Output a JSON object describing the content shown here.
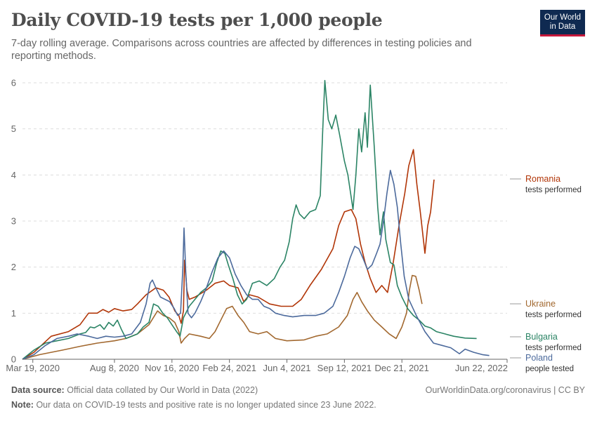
{
  "header": {
    "title": "Daily COVID-19 tests per 1,000 people",
    "subtitle": "7-day rolling average. Comparisons across countries are affected by differences in testing policies and reporting methods."
  },
  "logo": {
    "line1": "Our World",
    "line2": "in Data"
  },
  "footer": {
    "source_label": "Data source:",
    "source_text": "Official data collated by Our World in Data (2022)",
    "url": "OurWorldinData.org/coronavirus | CC BY",
    "note_label": "Note:",
    "note_text": "Our data on COVID-19 tests and positive rate is no longer updated since 23 June 2022."
  },
  "colors": {
    "grid": "#dddddd",
    "axis": "#666666"
  },
  "chart_data": {
    "type": "line",
    "title": "Daily COVID-19 tests per 1,000 people",
    "x_unit": "days since 2020-03-01",
    "xlim": [
      0,
      843
    ],
    "ylim": [
      0,
      6
    ],
    "yticks": [
      0,
      1,
      2,
      3,
      4,
      5,
      6
    ],
    "xticks": [
      {
        "x": 18,
        "label": "Mar 19, 2020"
      },
      {
        "x": 160,
        "label": "Aug 8, 2020"
      },
      {
        "x": 260,
        "label": "Nov 16, 2020"
      },
      {
        "x": 360,
        "label": "Feb 24, 2021"
      },
      {
        "x": 460,
        "label": "Jun 4, 2021"
      },
      {
        "x": 560,
        "label": "Sep 12, 2021"
      },
      {
        "x": 660,
        "label": "Dec 21, 2021"
      },
      {
        "x": 843,
        "label": "Jun 22, 2022"
      }
    ],
    "grid": "horizontal dashed",
    "series": [
      {
        "name": "Romania",
        "sub": "tests performed",
        "color": "#b13507",
        "points": [
          [
            0,
            0
          ],
          [
            20,
            0.15
          ],
          [
            50,
            0.5
          ],
          [
            80,
            0.6
          ],
          [
            100,
            0.75
          ],
          [
            115,
            1.0
          ],
          [
            130,
            1.0
          ],
          [
            140,
            1.08
          ],
          [
            150,
            1.02
          ],
          [
            160,
            1.1
          ],
          [
            175,
            1.05
          ],
          [
            190,
            1.08
          ],
          [
            200,
            1.2
          ],
          [
            215,
            1.4
          ],
          [
            232,
            1.55
          ],
          [
            245,
            1.5
          ],
          [
            255,
            1.35
          ],
          [
            265,
            1.05
          ],
          [
            272,
            0.95
          ],
          [
            276,
            0.78
          ],
          [
            280,
            1.05
          ],
          [
            282,
            2.15
          ],
          [
            286,
            1.5
          ],
          [
            290,
            1.3
          ],
          [
            300,
            1.35
          ],
          [
            320,
            1.5
          ],
          [
            335,
            1.65
          ],
          [
            350,
            1.7
          ],
          [
            360,
            1.6
          ],
          [
            375,
            1.55
          ],
          [
            385,
            1.25
          ],
          [
            395,
            1.4
          ],
          [
            410,
            1.35
          ],
          [
            430,
            1.2
          ],
          [
            450,
            1.15
          ],
          [
            470,
            1.15
          ],
          [
            485,
            1.3
          ],
          [
            500,
            1.6
          ],
          [
            520,
            1.95
          ],
          [
            540,
            2.4
          ],
          [
            550,
            2.9
          ],
          [
            560,
            3.2
          ],
          [
            572,
            3.25
          ],
          [
            580,
            3.05
          ],
          [
            588,
            2.5
          ],
          [
            596,
            2.1
          ],
          [
            605,
            1.75
          ],
          [
            615,
            1.45
          ],
          [
            625,
            1.6
          ],
          [
            635,
            1.45
          ],
          [
            645,
            2.1
          ],
          [
            655,
            2.9
          ],
          [
            665,
            3.6
          ],
          [
            672,
            4.2
          ],
          [
            680,
            4.55
          ],
          [
            686,
            3.8
          ],
          [
            692,
            3.2
          ],
          [
            700,
            2.3
          ],
          [
            705,
            2.9
          ],
          [
            710,
            3.2
          ],
          [
            716,
            3.9
          ]
        ]
      },
      {
        "name": "Ukraine",
        "sub": "tests performed",
        "color": "#a2682f",
        "points": [
          [
            0,
            0
          ],
          [
            30,
            0.1
          ],
          [
            70,
            0.2
          ],
          [
            100,
            0.28
          ],
          [
            130,
            0.35
          ],
          [
            160,
            0.4
          ],
          [
            180,
            0.45
          ],
          [
            200,
            0.55
          ],
          [
            220,
            0.75
          ],
          [
            235,
            1.05
          ],
          [
            245,
            0.95
          ],
          [
            255,
            0.9
          ],
          [
            265,
            0.8
          ],
          [
            272,
            0.6
          ],
          [
            276,
            0.35
          ],
          [
            282,
            0.45
          ],
          [
            290,
            0.55
          ],
          [
            310,
            0.5
          ],
          [
            325,
            0.45
          ],
          [
            335,
            0.6
          ],
          [
            345,
            0.85
          ],
          [
            355,
            1.1
          ],
          [
            365,
            1.15
          ],
          [
            375,
            0.95
          ],
          [
            385,
            0.8
          ],
          [
            395,
            0.6
          ],
          [
            410,
            0.55
          ],
          [
            425,
            0.6
          ],
          [
            440,
            0.45
          ],
          [
            460,
            0.4
          ],
          [
            490,
            0.42
          ],
          [
            510,
            0.5
          ],
          [
            530,
            0.55
          ],
          [
            550,
            0.7
          ],
          [
            565,
            0.95
          ],
          [
            575,
            1.3
          ],
          [
            582,
            1.45
          ],
          [
            590,
            1.25
          ],
          [
            600,
            1.05
          ],
          [
            612,
            0.85
          ],
          [
            625,
            0.7
          ],
          [
            638,
            0.55
          ],
          [
            650,
            0.45
          ],
          [
            660,
            0.7
          ],
          [
            668,
            1.0
          ],
          [
            673,
            1.5
          ],
          [
            678,
            1.82
          ],
          [
            684,
            1.8
          ],
          [
            690,
            1.5
          ],
          [
            695,
            1.2
          ]
        ]
      },
      {
        "name": "Bulgaria",
        "sub": "tests performed",
        "color": "#2b8465",
        "points": [
          [
            0,
            0
          ],
          [
            20,
            0.2
          ],
          [
            40,
            0.35
          ],
          [
            60,
            0.4
          ],
          [
            80,
            0.45
          ],
          [
            100,
            0.55
          ],
          [
            110,
            0.58
          ],
          [
            118,
            0.7
          ],
          [
            125,
            0.68
          ],
          [
            135,
            0.75
          ],
          [
            142,
            0.65
          ],
          [
            150,
            0.8
          ],
          [
            158,
            0.72
          ],
          [
            165,
            0.85
          ],
          [
            172,
            0.65
          ],
          [
            180,
            0.45
          ],
          [
            190,
            0.5
          ],
          [
            200,
            0.55
          ],
          [
            210,
            0.7
          ],
          [
            220,
            0.8
          ],
          [
            228,
            1.2
          ],
          [
            236,
            1.15
          ],
          [
            244,
            1.0
          ],
          [
            252,
            0.9
          ],
          [
            260,
            0.75
          ],
          [
            268,
            0.6
          ],
          [
            274,
            0.5
          ],
          [
            280,
            0.9
          ],
          [
            290,
            1.15
          ],
          [
            300,
            1.3
          ],
          [
            310,
            1.45
          ],
          [
            320,
            1.55
          ],
          [
            330,
            1.7
          ],
          [
            338,
            2.1
          ],
          [
            345,
            2.35
          ],
          [
            352,
            2.3
          ],
          [
            358,
            2.05
          ],
          [
            366,
            1.75
          ],
          [
            374,
            1.4
          ],
          [
            382,
            1.2
          ],
          [
            390,
            1.3
          ],
          [
            400,
            1.65
          ],
          [
            412,
            1.7
          ],
          [
            425,
            1.6
          ],
          [
            438,
            1.75
          ],
          [
            448,
            2.0
          ],
          [
            456,
            2.15
          ],
          [
            464,
            2.55
          ],
          [
            470,
            3.05
          ],
          [
            476,
            3.35
          ],
          [
            482,
            3.15
          ],
          [
            490,
            3.05
          ],
          [
            500,
            3.2
          ],
          [
            510,
            3.25
          ],
          [
            518,
            3.55
          ],
          [
            522,
            4.9
          ],
          [
            526,
            6.05
          ],
          [
            532,
            5.2
          ],
          [
            538,
            5.0
          ],
          [
            545,
            5.3
          ],
          [
            552,
            4.85
          ],
          [
            560,
            4.3
          ],
          [
            566,
            4.0
          ],
          [
            572,
            3.5
          ],
          [
            575,
            3.25
          ],
          [
            580,
            4.0
          ],
          [
            585,
            5.0
          ],
          [
            590,
            4.5
          ],
          [
            596,
            5.35
          ],
          [
            600,
            4.6
          ],
          [
            605,
            5.95
          ],
          [
            612,
            4.6
          ],
          [
            618,
            3.3
          ],
          [
            622,
            2.7
          ],
          [
            628,
            3.2
          ],
          [
            632,
            2.6
          ],
          [
            640,
            2.1
          ],
          [
            646,
            2.05
          ],
          [
            652,
            1.6
          ],
          [
            660,
            1.35
          ],
          [
            670,
            1.1
          ],
          [
            680,
            0.95
          ],
          [
            690,
            0.85
          ],
          [
            700,
            0.72
          ],
          [
            710,
            0.68
          ],
          [
            720,
            0.6
          ],
          [
            735,
            0.55
          ],
          [
            750,
            0.5
          ],
          [
            770,
            0.46
          ],
          [
            790,
            0.45
          ]
        ]
      },
      {
        "name": "Poland",
        "sub": "people tested",
        "color": "#4c6a9c",
        "points": [
          [
            0,
            0
          ],
          [
            20,
            0.1
          ],
          [
            40,
            0.3
          ],
          [
            60,
            0.45
          ],
          [
            80,
            0.5
          ],
          [
            95,
            0.55
          ],
          [
            115,
            0.5
          ],
          [
            130,
            0.45
          ],
          [
            145,
            0.5
          ],
          [
            160,
            0.48
          ],
          [
            175,
            0.5
          ],
          [
            190,
            0.55
          ],
          [
            205,
            0.8
          ],
          [
            215,
            1.2
          ],
          [
            222,
            1.65
          ],
          [
            226,
            1.72
          ],
          [
            232,
            1.55
          ],
          [
            240,
            1.35
          ],
          [
            248,
            1.3
          ],
          [
            256,
            1.25
          ],
          [
            264,
            1.1
          ],
          [
            270,
            0.95
          ],
          [
            275,
            1.0
          ],
          [
            279,
            2.0
          ],
          [
            281,
            2.85
          ],
          [
            284,
            1.9
          ],
          [
            288,
            1.0
          ],
          [
            294,
            0.9
          ],
          [
            300,
            1.0
          ],
          [
            310,
            1.25
          ],
          [
            320,
            1.55
          ],
          [
            330,
            1.9
          ],
          [
            340,
            2.2
          ],
          [
            350,
            2.35
          ],
          [
            360,
            2.2
          ],
          [
            370,
            1.85
          ],
          [
            380,
            1.6
          ],
          [
            390,
            1.4
          ],
          [
            400,
            1.3
          ],
          [
            410,
            1.3
          ],
          [
            420,
            1.15
          ],
          [
            430,
            1.1
          ],
          [
            440,
            1.0
          ],
          [
            455,
            0.95
          ],
          [
            470,
            0.92
          ],
          [
            490,
            0.95
          ],
          [
            510,
            0.95
          ],
          [
            525,
            1.0
          ],
          [
            540,
            1.15
          ],
          [
            550,
            1.45
          ],
          [
            560,
            1.8
          ],
          [
            570,
            2.2
          ],
          [
            578,
            2.45
          ],
          [
            585,
            2.4
          ],
          [
            592,
            2.2
          ],
          [
            600,
            1.95
          ],
          [
            608,
            2.05
          ],
          [
            616,
            2.3
          ],
          [
            622,
            2.5
          ],
          [
            628,
            3.0
          ],
          [
            634,
            3.6
          ],
          [
            640,
            4.1
          ],
          [
            646,
            3.8
          ],
          [
            652,
            3.3
          ],
          [
            658,
            2.5
          ],
          [
            664,
            1.8
          ],
          [
            672,
            1.3
          ],
          [
            685,
            0.95
          ],
          [
            700,
            0.6
          ],
          [
            715,
            0.35
          ],
          [
            730,
            0.3
          ],
          [
            745,
            0.25
          ],
          [
            760,
            0.12
          ],
          [
            770,
            0.22
          ],
          [
            785,
            0.15
          ],
          [
            800,
            0.1
          ],
          [
            812,
            0.08
          ]
        ]
      }
    ]
  }
}
